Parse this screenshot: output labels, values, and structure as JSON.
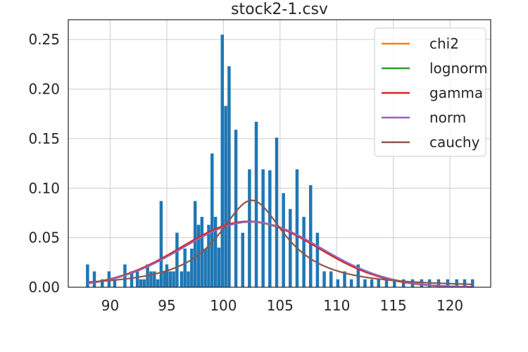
{
  "chart_data": {
    "type": "bar",
    "title": "stock2-1.csv",
    "xlabel": "",
    "ylabel": "",
    "xlim": [
      86.3,
      123.6
    ],
    "ylim": [
      0,
      0.27
    ],
    "grid": true,
    "legend_position": "top-right",
    "x_ticks": [
      90,
      95,
      100,
      105,
      110,
      115,
      120
    ],
    "x_tick_labels": [
      "90",
      "95",
      "100",
      "105",
      "110",
      "115",
      "120"
    ],
    "y_ticks": [
      0,
      0.05,
      0.1,
      0.15,
      0.2,
      0.25
    ],
    "y_tick_labels": [
      "0.00",
      "0.05",
      "0.10",
      "0.15",
      "0.20",
      "0.25"
    ],
    "bar_color": "#1f77b4",
    "bar_width": 0.28,
    "histogram": {
      "x": [
        88,
        88.6,
        89.3,
        89.9,
        90.4,
        91.3,
        91.9,
        92.4,
        92.7,
        93.0,
        93.3,
        93.6,
        93.9,
        94.2,
        94.5,
        94.8,
        95.0,
        95.3,
        95.6,
        95.9,
        96.3,
        96.6,
        96.9,
        97.2,
        97.5,
        97.8,
        98.1,
        98.4,
        98.7,
        99.0,
        99.3,
        99.6,
        99.9,
        100.2,
        100.5,
        101.1,
        101.7,
        102.3,
        102.9,
        103.5,
        104.1,
        104.7,
        105.3,
        105.9,
        106.5,
        107.1,
        107.7,
        108.3,
        108.9,
        109.5,
        110.1,
        110.7,
        111.3,
        111.9,
        112.5,
        113.1,
        113.7,
        114.4,
        115.1,
        115.9,
        116.7,
        117.5,
        118.2,
        119.0,
        119.8,
        120.6,
        121.3,
        122.0
      ],
      "density": [
        0.023,
        0.016,
        0.008,
        0.016,
        0.008,
        0.023,
        0.016,
        0.016,
        0.008,
        0.008,
        0.023,
        0.016,
        0.016,
        0.008,
        0.087,
        0.016,
        0.023,
        0.016,
        0.016,
        0.055,
        0.016,
        0.039,
        0.016,
        0.039,
        0.087,
        0.063,
        0.071,
        0.039,
        0.063,
        0.135,
        0.071,
        0.04,
        0.255,
        0.183,
        0.223,
        0.159,
        0.055,
        0.119,
        0.167,
        0.119,
        0.118,
        0.151,
        0.095,
        0.079,
        0.119,
        0.071,
        0.103,
        0.055,
        0.016,
        0.016,
        0.008,
        0.016,
        0.008,
        0.023,
        0.008,
        0.008,
        0.008,
        0.008,
        0.008,
        0.008,
        0.008,
        0.008,
        0.008,
        0.008,
        0.008,
        0.008,
        0.008,
        0.008
      ]
    },
    "series": [
      {
        "name": "chi2",
        "color": "#ff7f0e",
        "dist": "normal",
        "mu": 102.3,
        "sigma": 6.05,
        "scale": 1.0
      },
      {
        "name": "lognorm",
        "color": "#2ca02c",
        "dist": "normal",
        "mu": 102.3,
        "sigma": 6.05,
        "scale": 1.0
      },
      {
        "name": "gamma",
        "color": "#d62728",
        "dist": "normal",
        "mu": 102.25,
        "sigma": 6.0,
        "scale": 1.0
      },
      {
        "name": "norm",
        "color": "#9467bd",
        "dist": "normal",
        "mu": 102.5,
        "sigma": 6.05,
        "scale": 1.0
      },
      {
        "name": "cauchy",
        "color": "#8c564b",
        "dist": "cauchy",
        "x0": 102.5,
        "gamma": 3.63
      }
    ]
  }
}
